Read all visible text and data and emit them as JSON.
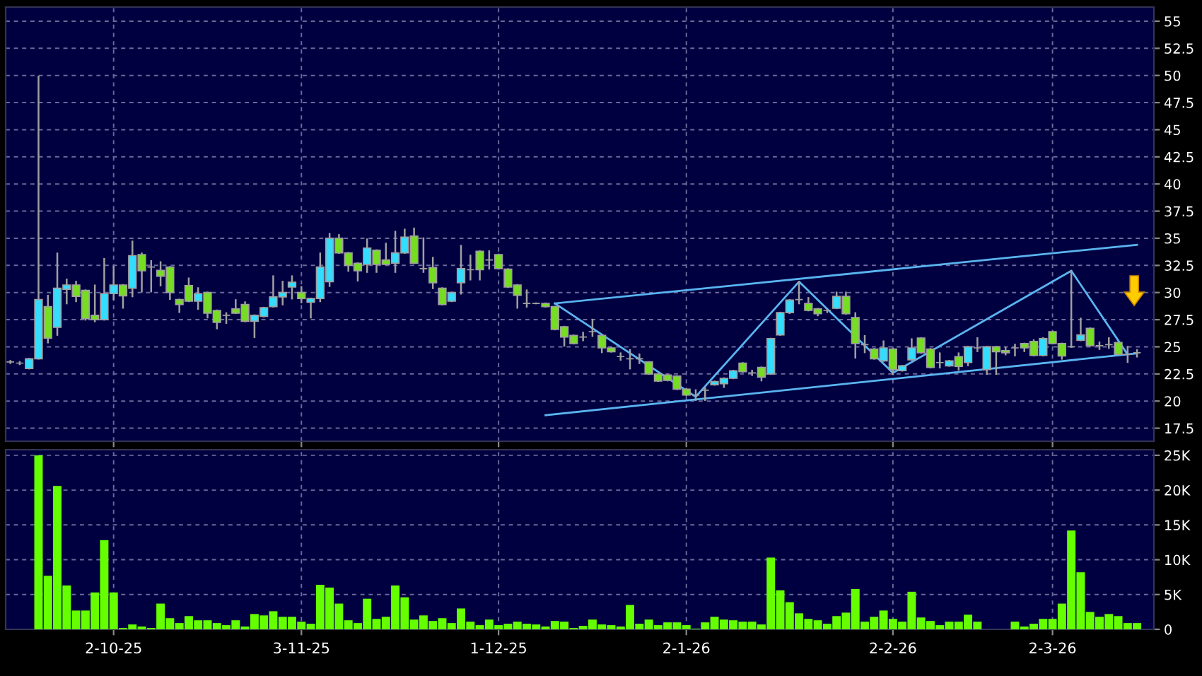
{
  "chart_data": [
    {
      "type": "candlestick",
      "categories": [
        null,
        null,
        null,
        null,
        null,
        null,
        null,
        null,
        null,
        null,
        null,
        null,
        null,
        null,
        null,
        null,
        null,
        null,
        null,
        null,
        null,
        null,
        null,
        null,
        null,
        null,
        null,
        null,
        null,
        null,
        null,
        null,
        null,
        null,
        null,
        null,
        null,
        null,
        null,
        null,
        null,
        null,
        null,
        null,
        null,
        null,
        null,
        null,
        null,
        null,
        null,
        null,
        null,
        null,
        null,
        null,
        null,
        null,
        null,
        null,
        null,
        null,
        null,
        null,
        null,
        null,
        null,
        null,
        null,
        null,
        null,
        null,
        null,
        null,
        null,
        null,
        null,
        null,
        null,
        null,
        null,
        null,
        null,
        null,
        null,
        null,
        null,
        null,
        null,
        null,
        null,
        null,
        null,
        null,
        null,
        null,
        null,
        null,
        null,
        null,
        null,
        null,
        null,
        null,
        null,
        null,
        null,
        null,
        null,
        null,
        null,
        null,
        null,
        null,
        null,
        null,
        null,
        null,
        null,
        null,
        null
      ],
      "ohlc": [
        [
          23.6,
          23.7,
          23.5,
          23.6
        ],
        [
          23.5,
          23.6,
          23.4,
          23.5
        ],
        [
          23.0,
          23.9,
          23.0,
          23.9
        ],
        [
          23.9,
          49.9,
          23.9,
          29.35
        ],
        [
          28.7,
          29.7,
          25.4,
          25.8
        ],
        [
          26.8,
          33.6,
          26.1,
          30.4
        ],
        [
          30.3,
          31.2,
          29.0,
          30.7
        ],
        [
          30.7,
          31.0,
          29.2,
          29.65
        ],
        [
          30.2,
          30.2,
          27.5,
          27.6
        ],
        [
          27.9,
          30.65,
          27.35,
          27.5
        ],
        [
          27.5,
          33.1,
          27.5,
          29.9
        ],
        [
          29.9,
          32.4,
          29.4,
          30.7
        ],
        [
          30.7,
          30.7,
          28.6,
          29.7
        ],
        [
          30.4,
          34.7,
          29.65,
          33.4
        ],
        [
          33.5,
          33.6,
          30.1,
          32.0
        ],
        [
          32.35,
          32.9,
          30.1,
          32.35
        ],
        [
          32.05,
          32.8,
          30.65,
          31.5
        ],
        [
          32.35,
          32.35,
          29.4,
          30.0
        ],
        [
          29.35,
          29.35,
          28.2,
          28.9
        ],
        [
          30.65,
          31.3,
          29.2,
          29.2
        ],
        [
          29.2,
          30.4,
          28.5,
          29.9
        ],
        [
          30.0,
          30.0,
          27.7,
          28.1
        ],
        [
          28.35,
          28.35,
          26.7,
          27.25
        ],
        [
          27.9,
          28.1,
          27.2,
          27.9
        ],
        [
          28.5,
          29.3,
          28.1,
          28.1
        ],
        [
          28.9,
          29.1,
          27.35,
          27.35
        ],
        [
          27.35,
          27.9,
          25.9,
          27.9
        ],
        [
          27.8,
          28.6,
          27.8,
          28.6
        ],
        [
          28.7,
          31.5,
          28.7,
          29.6
        ],
        [
          29.6,
          31.0,
          28.9,
          30.0
        ],
        [
          30.5,
          31.5,
          29.45,
          30.95
        ],
        [
          30.0,
          30.5,
          29.1,
          29.45
        ],
        [
          29.1,
          29.45,
          27.7,
          29.45
        ],
        [
          29.45,
          33.6,
          29.2,
          32.35
        ],
        [
          31.0,
          35.4,
          30.6,
          35.0
        ],
        [
          35.0,
          35.3,
          33.65,
          33.65
        ],
        [
          33.65,
          33.65,
          32.0,
          32.5
        ],
        [
          32.7,
          32.7,
          31.1,
          32.0
        ],
        [
          32.6,
          34.9,
          31.9,
          34.1
        ],
        [
          33.9,
          33.9,
          31.9,
          32.6
        ],
        [
          33.0,
          34.5,
          32.6,
          32.6
        ],
        [
          32.7,
          35.6,
          31.9,
          33.65
        ],
        [
          33.65,
          35.8,
          33.65,
          35.1
        ],
        [
          35.2,
          35.9,
          32.7,
          32.7
        ],
        [
          32.2,
          35.0,
          31.9,
          32.2
        ],
        [
          32.3,
          33.2,
          30.4,
          30.9
        ],
        [
          30.4,
          30.4,
          28.9,
          28.9
        ],
        [
          29.2,
          30.0,
          29.2,
          30.0
        ],
        [
          30.9,
          34.3,
          29.9,
          32.2
        ],
        [
          32.1,
          33.4,
          31.2,
          32.1
        ],
        [
          33.8,
          33.8,
          31.2,
          32.1
        ],
        [
          33.0,
          33.8,
          32.2,
          33.0
        ],
        [
          33.5,
          33.5,
          32.2,
          32.2
        ],
        [
          32.15,
          32.15,
          30.5,
          30.5
        ],
        [
          30.7,
          30.7,
          28.6,
          29.75
        ],
        [
          29.0,
          30.2,
          28.7,
          29.0
        ],
        [
          29.0,
          29.0,
          29.0,
          29.0
        ],
        [
          29.0,
          29.0,
          28.7,
          28.7
        ],
        [
          28.7,
          28.7,
          26.6,
          26.6
        ],
        [
          26.85,
          26.85,
          25.1,
          25.9
        ],
        [
          26.05,
          26.05,
          25.3,
          25.3
        ],
        [
          25.9,
          26.3,
          25.6,
          25.9
        ],
        [
          26.4,
          27.5,
          26.0,
          26.4
        ],
        [
          26.05,
          26.05,
          24.5,
          24.9
        ],
        [
          24.9,
          24.9,
          24.55,
          24.55
        ],
        [
          24.1,
          24.4,
          23.8,
          24.1
        ],
        [
          23.9,
          24.7,
          23.0,
          23.9
        ],
        [
          23.9,
          24.3,
          23.5,
          23.9
        ],
        [
          23.6,
          23.6,
          22.5,
          22.5
        ],
        [
          22.5,
          22.5,
          21.85,
          21.85
        ],
        [
          22.4,
          22.4,
          21.9,
          21.9
        ],
        [
          22.3,
          22.3,
          21.1,
          21.1
        ],
        [
          21.1,
          21.1,
          20.55,
          20.55
        ],
        [
          20.55,
          21.0,
          20.1,
          20.55
        ],
        [
          21.0,
          21.2,
          20.1,
          21.0
        ],
        [
          21.5,
          21.8,
          21.5,
          21.8
        ],
        [
          21.6,
          22.1,
          21.3,
          22.1
        ],
        [
          22.1,
          22.8,
          22.1,
          22.8
        ],
        [
          23.5,
          23.5,
          22.7,
          22.7
        ],
        [
          22.6,
          22.8,
          22.4,
          22.6
        ],
        [
          23.1,
          23.1,
          21.9,
          22.2
        ],
        [
          22.5,
          25.75,
          22.5,
          25.75
        ],
        [
          26.1,
          28.15,
          26.1,
          28.15
        ],
        [
          28.15,
          29.3,
          28.1,
          29.3
        ],
        [
          29.35,
          31.0,
          29.0,
          29.35
        ],
        [
          29.0,
          29.5,
          28.35,
          28.35
        ],
        [
          28.5,
          28.5,
          27.9,
          28.05
        ],
        [
          28.35,
          28.5,
          28.2,
          28.35
        ],
        [
          28.55,
          30.0,
          28.55,
          29.65
        ],
        [
          29.65,
          30.0,
          28.05,
          28.05
        ],
        [
          27.7,
          28.1,
          24.0,
          25.3
        ],
        [
          25.2,
          26.0,
          24.5,
          25.2
        ],
        [
          24.8,
          24.8,
          23.9,
          23.9
        ],
        [
          23.7,
          25.5,
          23.7,
          24.9
        ],
        [
          24.8,
          24.8,
          22.5,
          22.9
        ],
        [
          22.8,
          23.25,
          22.8,
          23.25
        ],
        [
          23.8,
          25.7,
          23.8,
          24.9
        ],
        [
          25.8,
          25.8,
          24.45,
          24.45
        ],
        [
          24.8,
          24.8,
          23.1,
          23.1
        ],
        [
          23.55,
          24.4,
          23.1,
          23.55
        ],
        [
          23.25,
          23.7,
          23.25,
          23.7
        ],
        [
          24.1,
          24.4,
          22.9,
          23.2
        ],
        [
          23.55,
          25.0,
          23.3,
          25.0
        ],
        [
          24.9,
          25.8,
          24.6,
          24.9
        ],
        [
          22.9,
          25.0,
          22.5,
          25.0
        ],
        [
          25.0,
          25.0,
          22.5,
          24.55
        ],
        [
          24.65,
          24.9,
          24.3,
          24.45
        ],
        [
          24.9,
          25.2,
          24.2,
          24.9
        ],
        [
          25.3,
          25.3,
          24.6,
          24.9
        ],
        [
          25.5,
          25.6,
          24.2,
          24.2
        ],
        [
          24.2,
          25.8,
          24.2,
          25.75
        ],
        [
          26.4,
          26.4,
          25.3,
          25.3
        ],
        [
          25.3,
          25.3,
          23.9,
          24.15
        ],
        [
          25.0,
          32.0,
          25.0,
          25.0
        ],
        [
          25.6,
          27.6,
          25.6,
          26.1
        ],
        [
          26.7,
          26.7,
          25.1,
          25.1
        ],
        [
          25.1,
          25.4,
          24.8,
          25.1
        ],
        [
          25.2,
          25.8,
          24.9,
          25.2
        ],
        [
          25.4,
          25.4,
          24.3,
          24.3
        ],
        [
          24.3,
          25.0,
          23.6,
          24.3
        ],
        [
          24.45,
          24.7,
          24.1,
          24.45
        ]
      ],
      "colors": [
        "#999999",
        "#999999",
        "#33ddff",
        "#33ddff",
        "#77dd22",
        "#33ddff",
        "#33ddff",
        "#77dd22",
        "#77dd22",
        "#77dd22",
        "#33ddff",
        "#33ddff",
        "#77dd22",
        "#33ddff",
        "#77dd22",
        "#999999",
        "#77dd22",
        "#77dd22",
        "#77dd22",
        "#77dd22",
        "#33ddff",
        "#77dd22",
        "#77dd22",
        "#999999",
        "#77dd22",
        "#77dd22",
        "#33ddff",
        "#33ddff",
        "#33ddff",
        "#33ddff",
        "#33ddff",
        "#77dd22",
        "#33ddff",
        "#33ddff",
        "#33ddff",
        "#77dd22",
        "#77dd22",
        "#77dd22",
        "#33ddff",
        "#77dd22",
        "#77dd22",
        "#33ddff",
        "#33ddff",
        "#77dd22",
        "#999999",
        "#77dd22",
        "#77dd22",
        "#33ddff",
        "#33ddff",
        "#999999",
        "#77dd22",
        "#999999",
        "#77dd22",
        "#77dd22",
        "#77dd22",
        "#999999",
        "#999999",
        "#77dd22",
        "#77dd22",
        "#77dd22",
        "#77dd22",
        "#999999",
        "#999999",
        "#77dd22",
        "#77dd22",
        "#999999",
        "#999999",
        "#999999",
        "#77dd22",
        "#77dd22",
        "#77dd22",
        "#77dd22",
        "#77dd22",
        "#999999",
        "#999999",
        "#33ddff",
        "#33ddff",
        "#33ddff",
        "#77dd22",
        "#999999",
        "#77dd22",
        "#33ddff",
        "#33ddff",
        "#33ddff",
        "#999999",
        "#77dd22",
        "#77dd22",
        "#999999",
        "#33ddff",
        "#77dd22",
        "#77dd22",
        "#999999",
        "#77dd22",
        "#33ddff",
        "#77dd22",
        "#33ddff",
        "#33ddff",
        "#77dd22",
        "#77dd22",
        "#999999",
        "#33ddff",
        "#77dd22",
        "#33ddff",
        "#999999",
        "#33ddff",
        "#77dd22",
        "#77dd22",
        "#999999",
        "#77dd22",
        "#77dd22",
        "#33ddff",
        "#77dd22",
        "#77dd22",
        "#999999",
        "#33ddff",
        "#77dd22",
        "#999999",
        "#999999",
        "#77dd22",
        "#999999",
        "#999999"
      ],
      "series": [
        {
          "type": "line",
          "color": "#5ab4f0",
          "values": [
            null,
            null,
            null,
            null,
            null,
            null,
            null,
            null,
            null,
            null,
            null,
            null,
            null,
            null,
            null,
            null,
            null,
            null,
            null,
            null,
            null,
            null,
            null,
            null,
            null,
            null,
            null,
            null,
            null,
            null,
            null,
            null,
            null,
            null,
            null,
            null,
            null,
            null,
            null,
            null,
            null,
            null,
            null,
            null,
            null,
            null,
            null,
            null,
            null,
            null,
            null,
            null,
            null,
            null,
            null,
            null,
            null,
            null,
            29.0,
            null,
            null,
            null,
            null,
            null,
            null,
            null,
            null,
            null,
            null,
            null,
            null,
            null,
            null,
            null,
            null,
            null,
            null,
            null,
            null,
            null,
            null,
            null,
            null,
            null,
            null,
            null,
            null,
            null,
            null,
            null,
            null,
            null,
            null,
            null,
            null,
            null,
            null,
            null,
            null,
            null,
            null,
            null,
            null,
            null,
            null,
            null,
            null,
            null,
            null,
            null,
            null,
            null,
            null,
            null,
            null,
            null,
            null,
            null,
            null,
            null,
            34.4
          ]
        },
        {
          "type": "line",
          "color": "#5ab4f0",
          "values": [
            null,
            null,
            null,
            null,
            null,
            null,
            null,
            null,
            null,
            null,
            null,
            null,
            null,
            null,
            null,
            null,
            null,
            null,
            null,
            null,
            null,
            null,
            null,
            null,
            null,
            null,
            null,
            null,
            null,
            null,
            null,
            null,
            null,
            null,
            null,
            null,
            null,
            null,
            null,
            null,
            null,
            null,
            null,
            null,
            null,
            null,
            null,
            null,
            null,
            null,
            null,
            null,
            null,
            null,
            null,
            null,
            null,
            18.7,
            null,
            null,
            null,
            null,
            null,
            null,
            null,
            null,
            null,
            null,
            null,
            null,
            null,
            null,
            null,
            null,
            null,
            null,
            null,
            null,
            null,
            null,
            null,
            null,
            null,
            null,
            null,
            null,
            null,
            null,
            null,
            null,
            null,
            null,
            null,
            null,
            null,
            null,
            null,
            null,
            null,
            null,
            null,
            null,
            null,
            null,
            null,
            null,
            null,
            null,
            null,
            null,
            null,
            null,
            null,
            null,
            null,
            null,
            null,
            null,
            null,
            null,
            24.4
          ]
        },
        {
          "type": "line",
          "color": "#5ab4f0",
          "values": [
            null,
            null,
            null,
            null,
            null,
            null,
            null,
            null,
            null,
            null,
            null,
            null,
            null,
            null,
            null,
            null,
            null,
            null,
            null,
            null,
            null,
            null,
            null,
            null,
            null,
            null,
            null,
            null,
            null,
            null,
            null,
            null,
            null,
            null,
            null,
            null,
            null,
            null,
            null,
            null,
            null,
            null,
            null,
            null,
            null,
            null,
            null,
            null,
            null,
            null,
            null,
            null,
            null,
            null,
            null,
            null,
            null,
            null,
            29.0,
            null,
            null,
            null,
            null,
            null,
            null,
            null,
            null,
            null,
            null,
            null,
            null,
            null,
            null,
            20.4,
            null,
            null,
            null,
            null,
            null,
            null,
            null,
            null,
            null,
            null,
            31.0,
            null,
            null,
            null,
            null,
            null,
            null,
            null,
            null,
            null,
            22.6,
            null,
            null,
            null,
            null,
            null,
            null,
            null,
            null,
            null,
            null,
            null,
            null,
            null,
            null,
            null,
            null,
            null,
            null,
            32.0,
            null,
            null,
            null,
            null,
            null,
            24.3,
            null
          ]
        }
      ],
      "ylim": [
        16.3,
        56.3
      ],
      "yticks": [
        17.5,
        20,
        22.5,
        25,
        27.5,
        30,
        32.5,
        35,
        37.5,
        40,
        42.5,
        45,
        47.5,
        50,
        52.5,
        55
      ],
      "grid": true,
      "tick_labels": "y"
    },
    {
      "type": "bar",
      "categories": [
        null,
        null,
        null,
        null,
        null,
        null,
        null,
        null,
        null,
        null,
        null,
        "2-10-25",
        null,
        null,
        null,
        null,
        null,
        null,
        null,
        null,
        null,
        null,
        null,
        null,
        null,
        null,
        null,
        null,
        null,
        null,
        null,
        "3-11-25",
        null,
        null,
        null,
        null,
        null,
        null,
        null,
        null,
        null,
        null,
        null,
        null,
        null,
        null,
        null,
        null,
        null,
        null,
        null,
        null,
        "1-12-25",
        null,
        null,
        null,
        null,
        null,
        null,
        null,
        null,
        null,
        null,
        null,
        null,
        null,
        null,
        null,
        null,
        null,
        null,
        null,
        "2-1-26",
        null,
        null,
        null,
        null,
        null,
        null,
        null,
        null,
        null,
        null,
        null,
        null,
        null,
        null,
        null,
        null,
        null,
        null,
        null,
        null,
        null,
        "2-2-26",
        null,
        null,
        null,
        null,
        null,
        null,
        null,
        null,
        null,
        null,
        null,
        null,
        null,
        null,
        null,
        null,
        "2-3-26",
        null,
        null,
        null,
        null,
        null,
        null,
        null,
        null,
        null
      ],
      "values": [
        0,
        0,
        0,
        25.0,
        7.7,
        20.6,
        6.3,
        2.7,
        2.7,
        5.3,
        12.8,
        5.3,
        0.2,
        0.7,
        0.4,
        0.2,
        3.7,
        1.6,
        0.9,
        1.9,
        1.3,
        1.3,
        0.9,
        0.6,
        1.3,
        0.4,
        2.2,
        2.0,
        2.6,
        1.8,
        1.8,
        1.1,
        0.8,
        6.4,
        6.0,
        3.7,
        1.3,
        0.9,
        4.4,
        1.5,
        1.8,
        6.3,
        4.6,
        1.4,
        2.0,
        1.2,
        1.6,
        0.9,
        3.0,
        1.1,
        0.6,
        1.4,
        0.6,
        0.8,
        1.1,
        0.8,
        0.7,
        0.4,
        1.2,
        1.1,
        0.2,
        0.5,
        1.4,
        0.7,
        0.6,
        0.4,
        3.5,
        0.8,
        1.4,
        0.6,
        1.0,
        1.0,
        0.6,
        0.1,
        1.0,
        1.8,
        1.4,
        1.3,
        1.1,
        1.1,
        0.7,
        10.3,
        5.6,
        3.9,
        2.3,
        1.5,
        1.3,
        0.8,
        1.9,
        2.4,
        5.8,
        1.1,
        1.8,
        2.7,
        1.5,
        1.1,
        5.4,
        1.7,
        1.2,
        0.6,
        1.1,
        1.1,
        2.1,
        1.1,
        0,
        0,
        0,
        1.1,
        0.4,
        0.8,
        1.5,
        1.5,
        3.7,
        14.2,
        8.2,
        2.5,
        1.8,
        2.2,
        1.9,
        0.9,
        0.9
      ],
      "color": "#66ff00",
      "ylim": [
        0,
        25.8
      ],
      "yticks": [
        0,
        {
          "value": 5,
          "label": "5K"
        },
        {
          "value": 10,
          "label": "10K"
        },
        {
          "value": 15,
          "label": "15K"
        },
        {
          "value": 20,
          "label": "20K"
        },
        {
          "value": 25,
          "label": "25K"
        }
      ],
      "grid": true
    }
  ]
}
